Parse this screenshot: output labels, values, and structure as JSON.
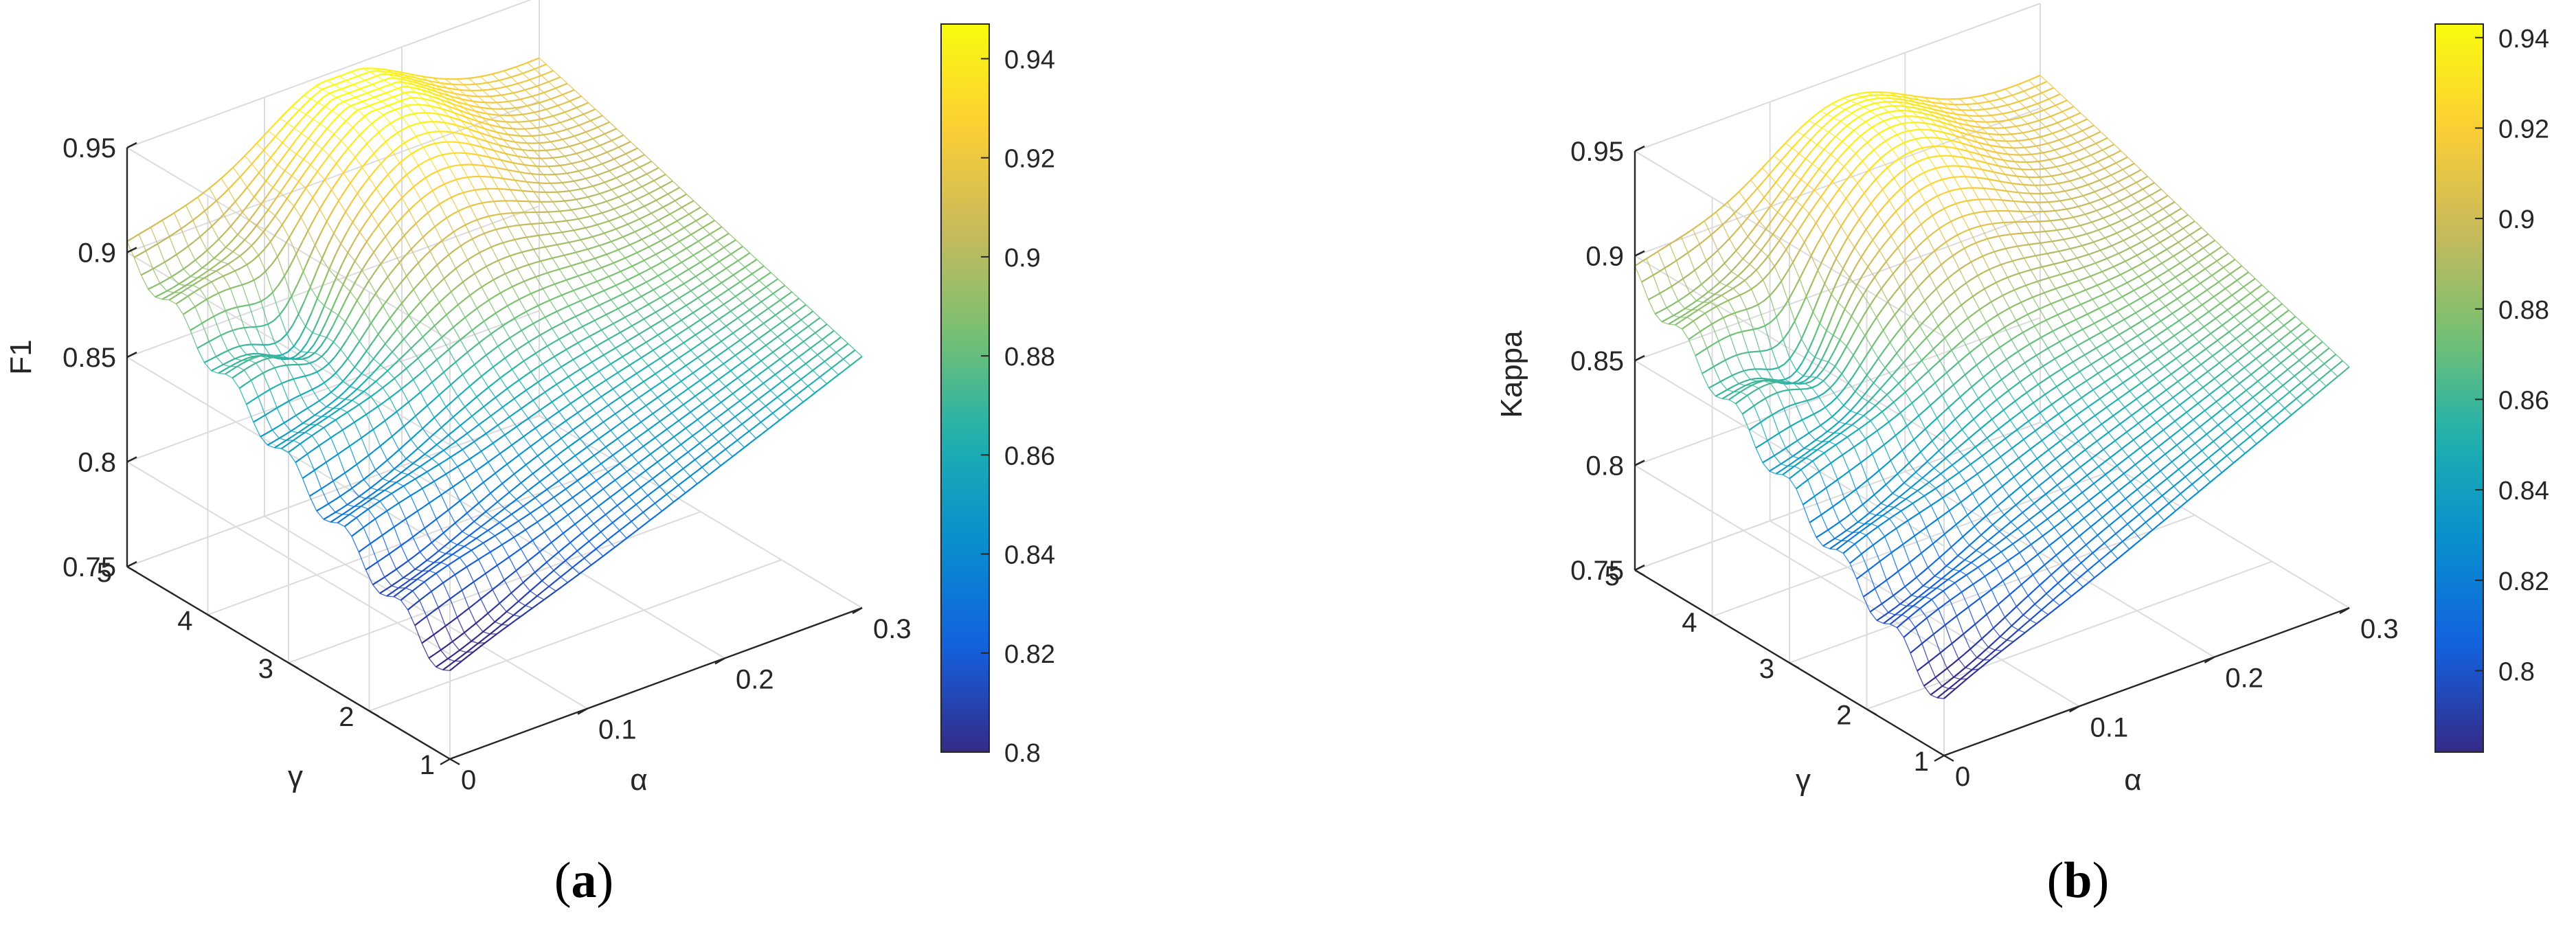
{
  "chart_data": [
    {
      "type": "surface",
      "panel_label": "a",
      "zlabel": "F1",
      "xlabel": "α",
      "ylabel": "γ",
      "xlim": [
        0,
        0.3
      ],
      "ylim": [
        1,
        5
      ],
      "zlim": [
        0.75,
        0.95
      ],
      "x_ticks": [
        "0",
        "0.1",
        "0.2",
        "0.3"
      ],
      "y_ticks": [
        "1",
        "2",
        "3",
        "4",
        "5"
      ],
      "z_ticks": [
        "0.75",
        "0.8",
        "0.85",
        "0.9",
        "0.95"
      ],
      "colorbar_ticks": [
        "0.8",
        "0.82",
        "0.84",
        "0.86",
        "0.88",
        "0.9",
        "0.92",
        "0.94"
      ],
      "colorbar_range": [
        0.8,
        0.947
      ],
      "grid": true,
      "surface_features": {
        "value_at_alpha0_gamma5": 0.9,
        "value_at_alpha0_gamma1": 0.79,
        "value_at_alpha03_gamma5": 0.92,
        "value_at_alpha03_gamma1": 0.87,
        "peak_alpha": 0.15,
        "peak_gamma": 4.3,
        "peak_value": 0.945
      }
    },
    {
      "type": "surface",
      "panel_label": "b",
      "zlabel": "Kappa",
      "xlabel": "α",
      "ylabel": "γ",
      "xlim": [
        0,
        0.3
      ],
      "ylim": [
        1,
        5
      ],
      "zlim": [
        0.75,
        0.95
      ],
      "x_ticks": [
        "0",
        "0.1",
        "0.2",
        "0.3"
      ],
      "y_ticks": [
        "1",
        "2",
        "3",
        "4",
        "5"
      ],
      "z_ticks": [
        "0.75",
        "0.8",
        "0.85",
        "0.9",
        "0.95"
      ],
      "colorbar_ticks": [
        "0.8",
        "0.82",
        "0.84",
        "0.86",
        "0.88",
        "0.9",
        "0.92",
        "0.94"
      ],
      "colorbar_range": [
        0.782,
        0.943
      ],
      "grid": true,
      "surface_features": {
        "value_at_alpha0_gamma5": 0.89,
        "value_at_alpha0_gamma1": 0.775,
        "value_at_alpha03_gamma5": 0.915,
        "value_at_alpha03_gamma1": 0.865,
        "peak_alpha": 0.15,
        "peak_gamma": 4.3,
        "peak_value": 0.942
      }
    }
  ]
}
